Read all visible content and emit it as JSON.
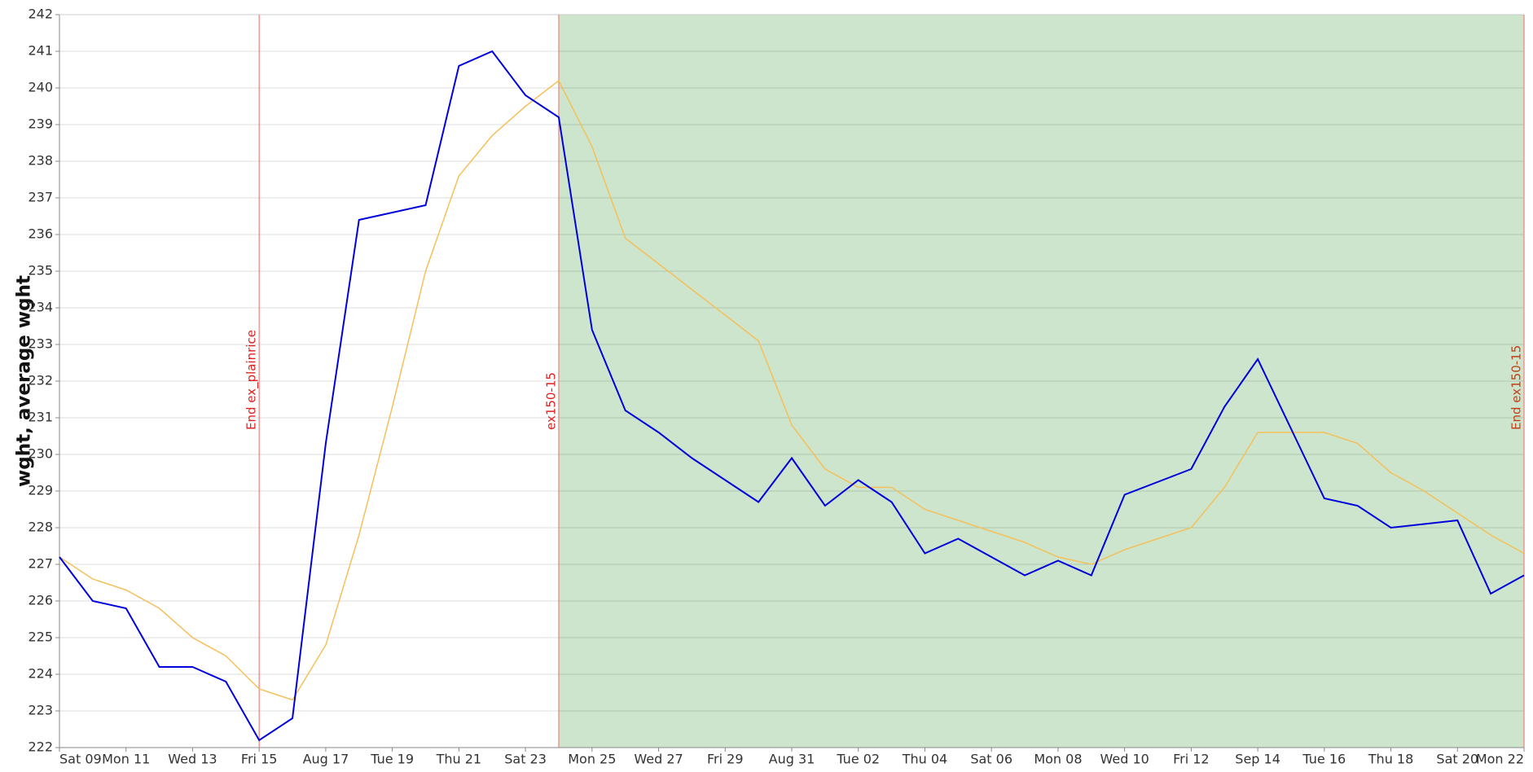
{
  "chart_data": {
    "type": "line",
    "y_label": "wght, average wght",
    "categories": [
      "Sat 09",
      null,
      "Mon 11",
      null,
      "Wed 13",
      null,
      "Fri 15",
      null,
      "Aug 17",
      null,
      "Tue 19",
      null,
      "Thu 21",
      null,
      "Sat 23",
      null,
      "Mon 25",
      null,
      "Wed 27",
      null,
      "Fri 29",
      null,
      "Aug 31",
      null,
      "Tue 02",
      null,
      "Thu 04",
      null,
      "Sat 06",
      null,
      "Mon 08",
      null,
      "Wed 10",
      null,
      "Fri 12",
      null,
      "Sep 14",
      null,
      "Tue 16",
      null,
      "Thu 18",
      null,
      "Sat 20",
      null,
      "Mon 22"
    ],
    "series": [
      {
        "color": "#0000dd",
        "width": 2,
        "values": [
          227.2,
          226.0,
          225.8,
          224.2,
          224.2,
          223.8,
          222.2,
          222.8,
          230.3,
          236.4,
          236.6,
          236.8,
          240.6,
          241.0,
          239.8,
          239.2,
          233.4,
          231.2,
          230.6,
          229.9,
          229.3,
          228.7,
          229.9,
          228.6,
          229.3,
          228.7,
          227.3,
          227.7,
          227.2,
          226.7,
          227.1,
          226.7,
          228.9,
          229.25,
          229.6,
          231.3,
          232.6,
          230.7,
          228.8,
          228.6,
          228.0,
          228.1,
          228.2,
          226.2,
          226.7
        ]
      },
      {
        "color": "#f5c05a",
        "width": 1.5,
        "values": [
          227.2,
          226.6,
          226.3,
          225.8,
          225.0,
          224.5,
          223.6,
          223.3,
          224.8,
          227.8,
          231.3,
          235.0,
          237.6,
          238.7,
          239.5,
          240.2,
          238.4,
          235.9,
          235.2,
          234.5,
          233.8,
          233.1,
          230.8,
          229.6,
          229.1,
          229.1,
          228.5,
          228.2,
          227.9,
          227.6,
          227.2,
          227.0,
          227.4,
          227.7,
          228.0,
          229.1,
          230.6,
          230.6,
          230.6,
          230.3,
          229.5,
          229.0,
          228.4,
          227.8,
          227.3
        ]
      }
    ],
    "ylim": [
      222,
      242
    ],
    "yticks": [
      222,
      223,
      224,
      225,
      226,
      227,
      228,
      229,
      230,
      231,
      232,
      233,
      234,
      235,
      236,
      237,
      238,
      239,
      240,
      241,
      242
    ],
    "grid": true,
    "shaded_span": {
      "from": 15,
      "to": 44,
      "color": "#cce5cc"
    },
    "annotations": [
      {
        "at": 6,
        "label": "End ex_plainrice",
        "color": "#e02020"
      },
      {
        "at": 15,
        "label": "ex150-15",
        "color": "#e02020"
      },
      {
        "at": 44,
        "label": "End ex150-15",
        "color": "#c04018"
      }
    ]
  }
}
